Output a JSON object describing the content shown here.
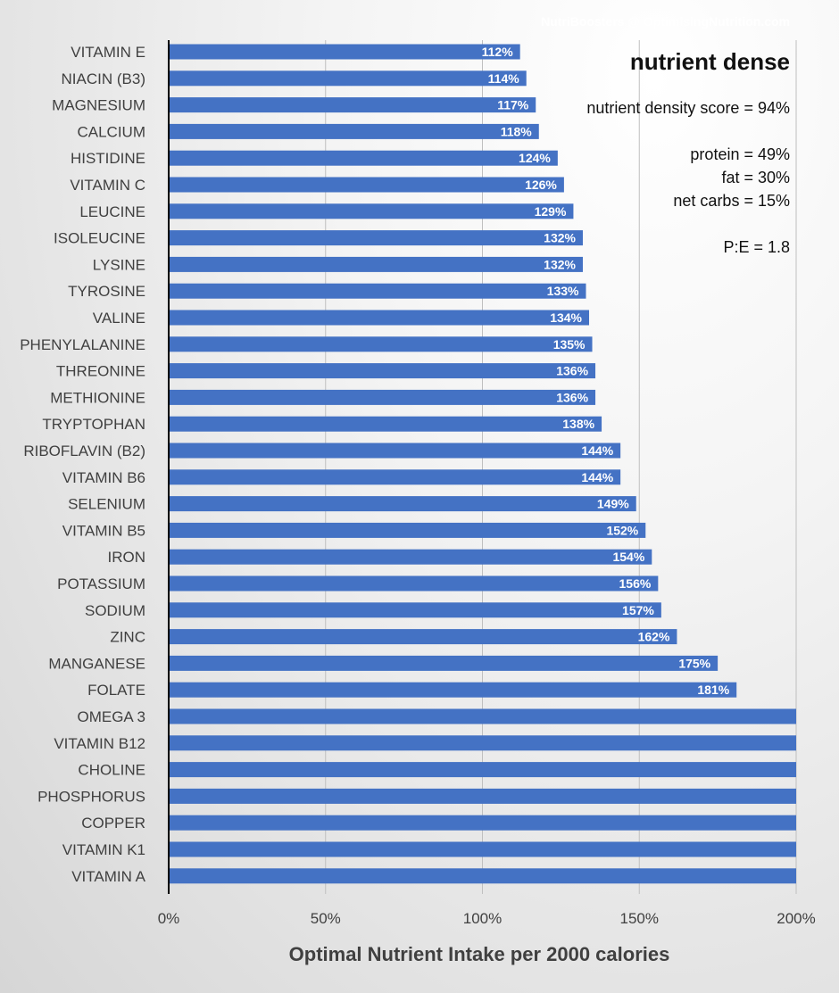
{
  "watermark": "NutriBoosters @ OptimisingNutrition.com",
  "annotation": {
    "title": "nutrient dense",
    "lines": [
      "nutrient density score = 94%",
      "",
      "protein = 49%",
      "fat = 30%",
      "net carbs = 15%",
      "",
      "P:E = 1.8"
    ]
  },
  "colors": {
    "bar": "#4472c4",
    "grid": "#bfbfbf",
    "axis": "#000000"
  },
  "chart_data": {
    "type": "bar",
    "orientation": "horizontal",
    "xlabel": "Optimal Nutrient Intake per 2000 calories",
    "xlim": [
      0,
      200
    ],
    "xticks": [
      0,
      50,
      100,
      150,
      200
    ],
    "xtick_labels": [
      "0%",
      "50%",
      "100%",
      "150%",
      "200%"
    ],
    "grid": true,
    "categories": [
      "VITAMIN E",
      "NIACIN (B3)",
      "MAGNESIUM",
      "CALCIUM",
      "HISTIDINE",
      "VITAMIN C",
      "LEUCINE",
      "ISOLEUCINE",
      "LYSINE",
      "TYROSINE",
      "VALINE",
      "PHENYLALANINE",
      "THREONINE",
      "METHIONINE",
      "TRYPTOPHAN",
      "RIBOFLAVIN (B2)",
      "VITAMIN B6",
      "SELENIUM",
      "VITAMIN B5",
      "IRON",
      "POTASSIUM",
      "SODIUM",
      "ZINC",
      "MANGANESE",
      "FOLATE",
      "OMEGA 3",
      "VITAMIN B12",
      "CHOLINE",
      "PHOSPHORUS",
      "COPPER",
      "VITAMIN K1",
      "VITAMIN A"
    ],
    "values": [
      112,
      114,
      117,
      118,
      124,
      126,
      129,
      132,
      132,
      133,
      134,
      135,
      136,
      136,
      138,
      144,
      144,
      149,
      152,
      154,
      156,
      157,
      162,
      175,
      181,
      200,
      200,
      200,
      200,
      200,
      200,
      200
    ],
    "value_labels": [
      "112%",
      "114%",
      "117%",
      "118%",
      "124%",
      "126%",
      "129%",
      "132%",
      "132%",
      "133%",
      "134%",
      "135%",
      "136%",
      "136%",
      "138%",
      "144%",
      "144%",
      "149%",
      "152%",
      "154%",
      "156%",
      "157%",
      "162%",
      "175%",
      "181%",
      "",
      "",
      "",
      "",
      "",
      "",
      ""
    ]
  }
}
